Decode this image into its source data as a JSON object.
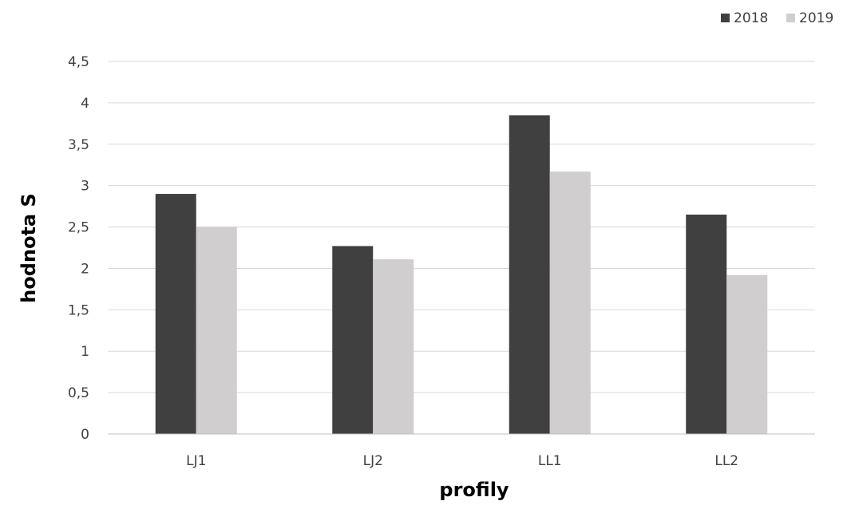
{
  "chart_data": {
    "type": "bar",
    "categories": [
      "LJ1",
      "LJ2",
      "LL1",
      "LL2"
    ],
    "series": [
      {
        "name": "2018",
        "values": [
          2.9,
          2.27,
          3.85,
          2.65
        ],
        "color": "#404040"
      },
      {
        "name": "2019",
        "values": [
          2.5,
          2.11,
          3.17,
          1.92
        ],
        "color": "#d0cece"
      }
    ],
    "yticks": [
      "0",
      "0,5",
      "1",
      "1,5",
      "2",
      "2,5",
      "3",
      "3,5",
      "4",
      "4,5"
    ],
    "ylim": [
      0,
      4.5
    ],
    "xlabel": "profily",
    "ylabel": "hodnota S",
    "grid": true,
    "legend_position": "top-right"
  }
}
